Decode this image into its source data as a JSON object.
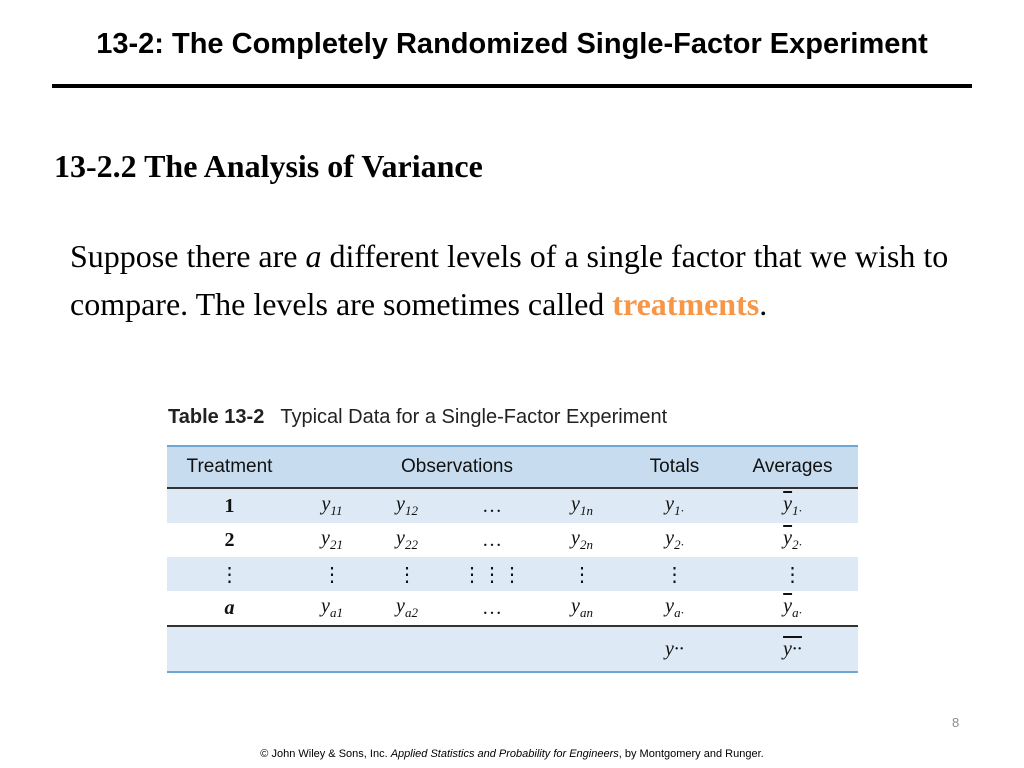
{
  "slide": {
    "title": "13-2: The Completely Randomized Single-Factor Experiment",
    "section": "13-2.2 The Analysis of Variance",
    "body": {
      "part1": "Suppose there are ",
      "italic_a": "a",
      "part2": " different levels of a single factor that we wish to compare.  The levels are sometimes called ",
      "highlight": "treatments",
      "period": "."
    },
    "accent_color": "#f79646"
  },
  "table": {
    "caption_number": "Table 13-2",
    "caption_text": "Typical Data for a Single-Factor Experiment",
    "headers": [
      "Treatment",
      "Observations",
      "Totals",
      "Averages"
    ],
    "rows": [
      {
        "treatment": "1",
        "o1": "y",
        "o1s": "11",
        "o2": "y",
        "o2s": "12",
        "dots": "…",
        "on": "y",
        "ons": "1n",
        "total": "y",
        "totals": "1·",
        "avg": "y",
        "avgs": "1·"
      },
      {
        "treatment": "2",
        "o1": "y",
        "o1s": "21",
        "o2": "y",
        "o2s": "22",
        "dots": "…",
        "on": "y",
        "ons": "2n",
        "total": "y",
        "totals": "2·",
        "avg": "y",
        "avgs": "2·"
      },
      {
        "treatment": "⋮",
        "o1": "⋮",
        "o1s": "",
        "o2": "⋮",
        "o2s": "",
        "dots": "⋮⋮⋮",
        "on": "⋮",
        "ons": "",
        "total": "⋮",
        "totals": "",
        "avg": "⋮",
        "avgs": ""
      },
      {
        "treatment": "a",
        "o1": "y",
        "o1s": "a1",
        "o2": "y",
        "o2s": "a2",
        "dots": "…",
        "on": "y",
        "ons": "an",
        "total": "y",
        "totals": "a·",
        "avg": "y",
        "avgs": "a·"
      }
    ],
    "grand": {
      "total": "y··",
      "avg": "y··"
    },
    "colors": {
      "header_bg": "#c7dcef",
      "row_bg": "#ddeaf6",
      "line": "#6ea6d4"
    }
  },
  "page_number": "8",
  "footer": {
    "prefix": "© John Wiley & Sons, Inc.  ",
    "book": "Applied Statistics and Probability for Engineers",
    "suffix": ", by Montgomery and Runger."
  }
}
